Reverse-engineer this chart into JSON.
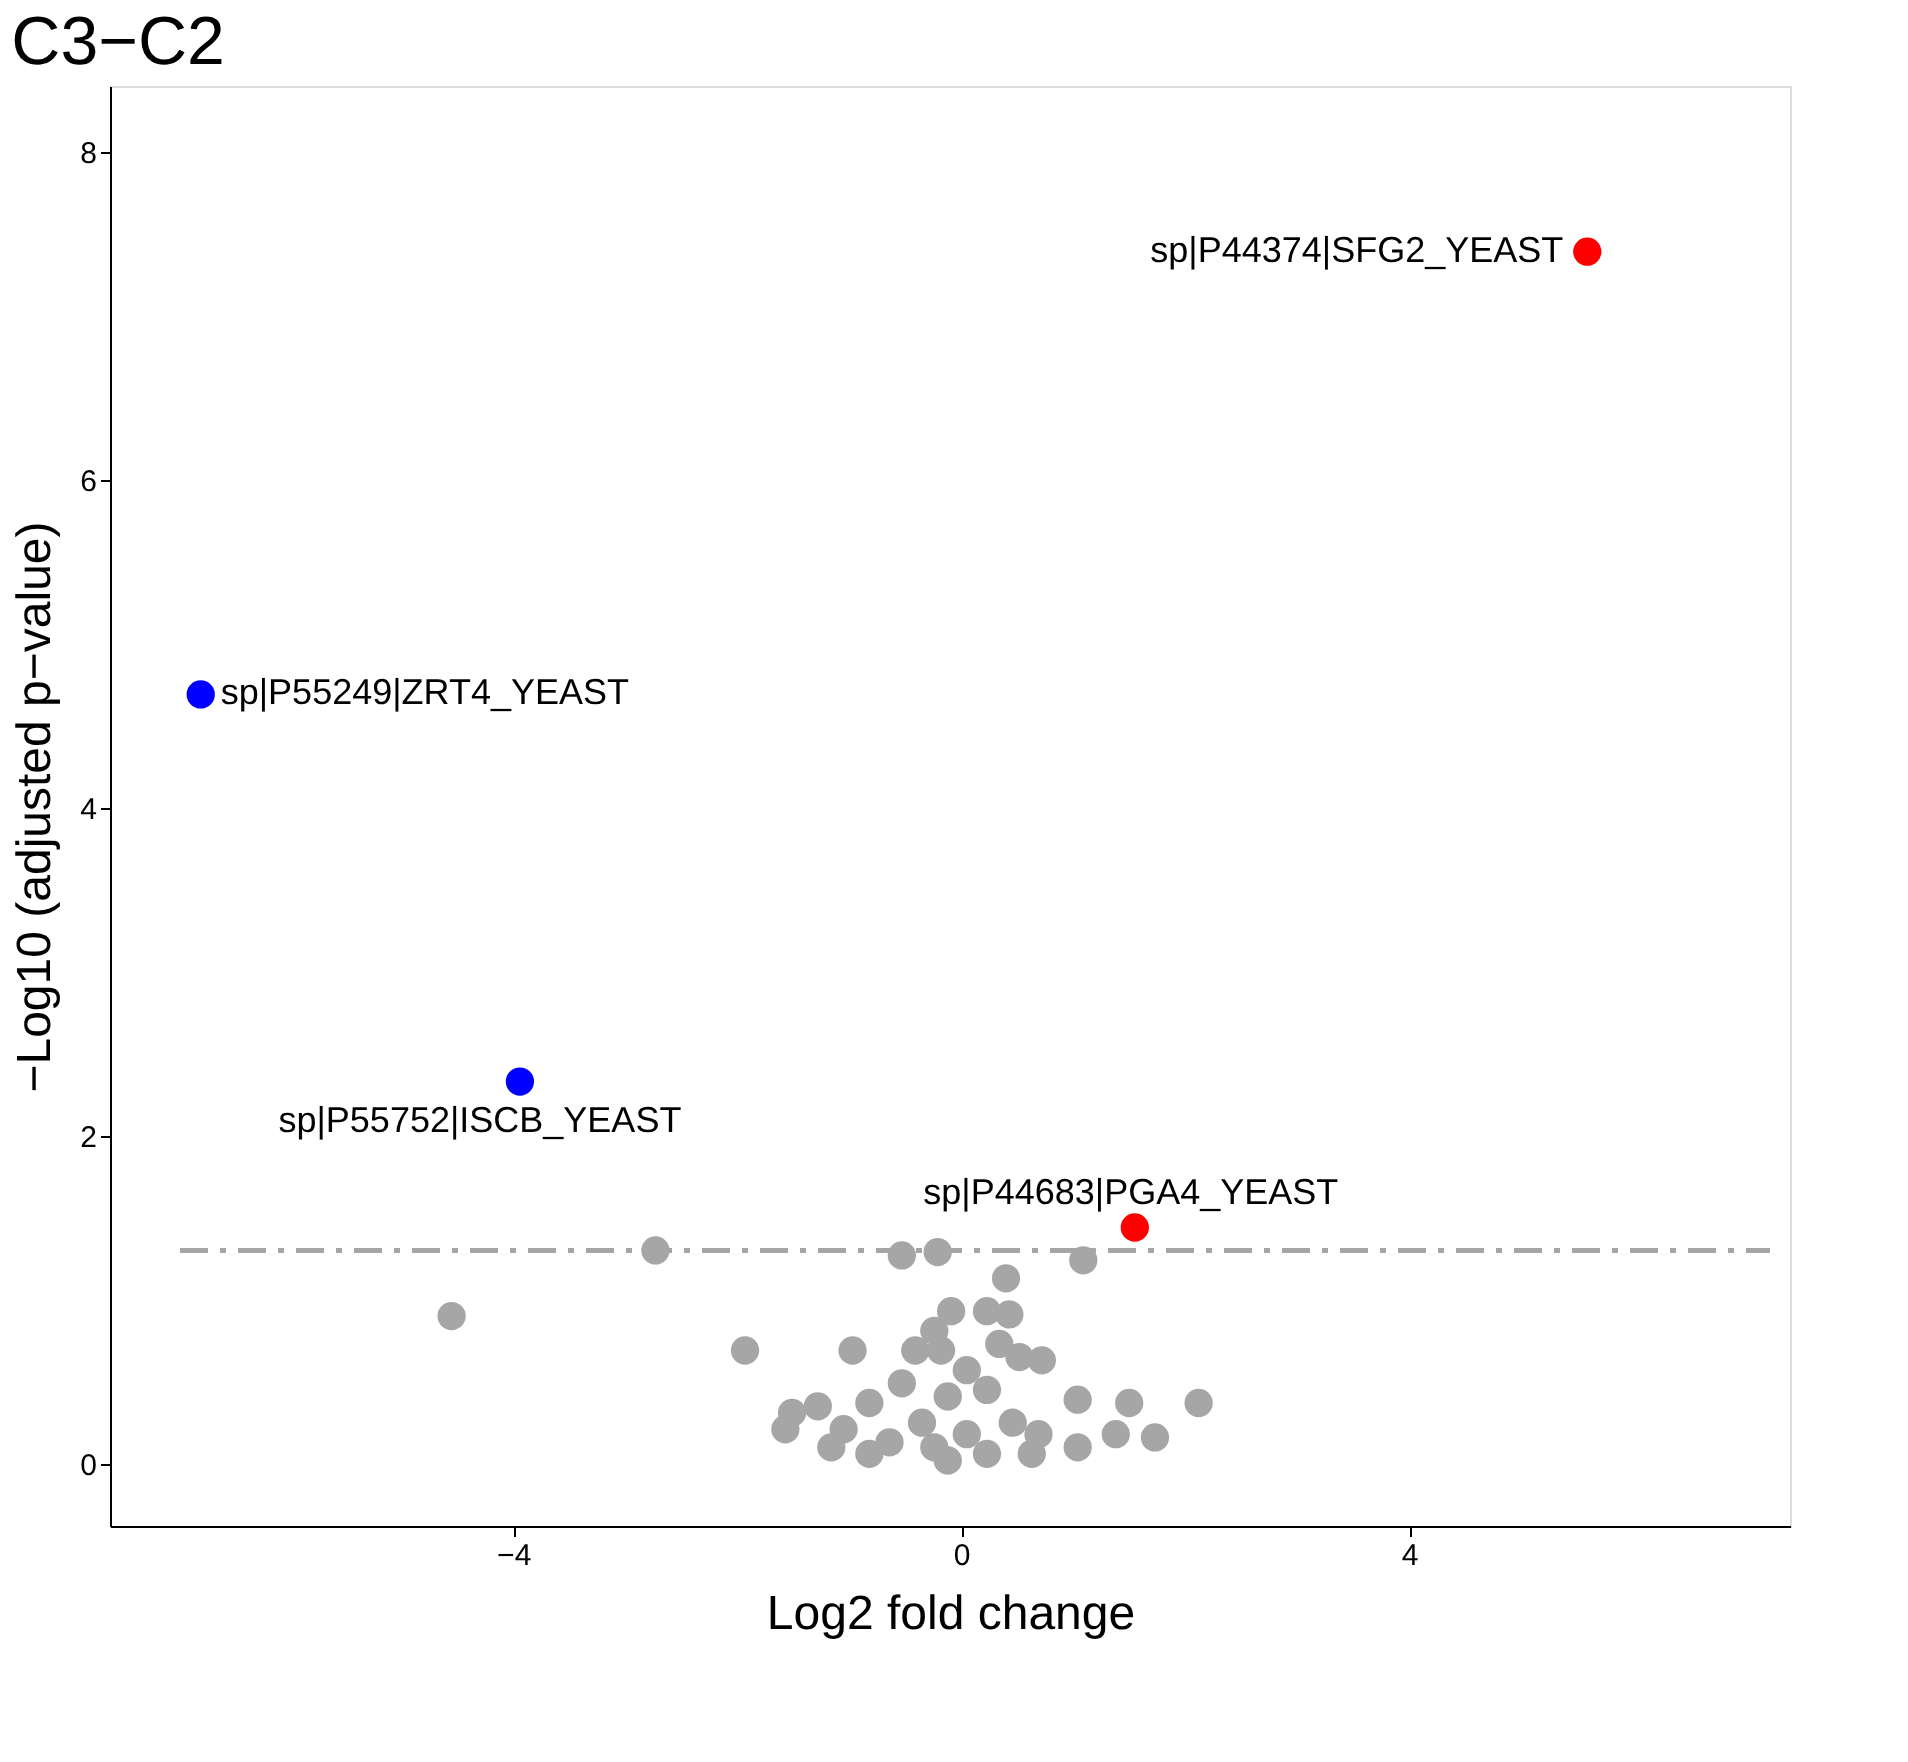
{
  "chart_data": {
    "type": "scatter",
    "title": "C3−C2",
    "xlabel": "Log2 fold change",
    "ylabel": "−Log10 (adjusted p−value)",
    "xlim": [
      -7.6,
      7.4
    ],
    "ylim": [
      -0.38,
      8.4
    ],
    "xticks": [
      {
        "value": -4,
        "label": "−4"
      },
      0,
      4
    ],
    "yticks": [
      0,
      2,
      4,
      6,
      8
    ],
    "grid": false,
    "marker": "circle",
    "series": [
      {
        "color": "#a6a6a6",
        "x": [
          -4.55,
          -2.73,
          -0.53,
          -0.21,
          1.09,
          0.4,
          -1.93,
          -0.97,
          2.12,
          -0.09,
          0.23,
          0.43,
          0.72,
          1.5,
          1.73,
          -1.51,
          -1.57,
          -1.28,
          -0.82,
          -0.41,
          -0.24,
          0.34,
          0.52,
          1.04,
          1.38,
          -0.12,
          -0.82,
          -1.16,
          0.63,
          1.04,
          -0.53,
          0.05,
          0.23,
          -0.35,
          0.05,
          0.46,
          0.69,
          -1.05,
          -0.64,
          -0.24,
          0.23,
          -0.18,
          -0.12
        ],
        "values": [
          0.9,
          1.3,
          1.27,
          1.29,
          1.24,
          1.13,
          0.69,
          0.69,
          0.37,
          0.93,
          0.93,
          0.91,
          0.63,
          0.37,
          0.16,
          0.31,
          0.21,
          0.35,
          0.37,
          0.69,
          0.81,
          0.73,
          0.65,
          0.39,
          0.18,
          0.02,
          0.06,
          0.1,
          0.06,
          0.1,
          0.49,
          0.57,
          0.45,
          0.25,
          0.18,
          0.25,
          0.18,
          0.21,
          0.13,
          0.1,
          0.06,
          0.69,
          0.41
        ]
      },
      {
        "color": "#ff0000",
        "x": [
          5.59,
          1.55
        ],
        "values": [
          7.39,
          1.44
        ]
      },
      {
        "color": "#0000ff",
        "x": [
          -6.79,
          -3.94
        ],
        "values": [
          4.69,
          2.33
        ]
      }
    ],
    "ref_lines": [
      {
        "axis": "y",
        "value": 1.3,
        "color": "#a6a6a6",
        "line_style": "dashed"
      }
    ],
    "annotations": [
      {
        "text": "sp|P44374|SFG2_YEAST",
        "x": 5.59,
        "y": 7.39
      },
      {
        "text": "sp|P55249|ZRT4_YEAST",
        "x": -6.79,
        "y": 4.69
      },
      {
        "text": "sp|P55752|ISCB_YEAST",
        "x": -3.94,
        "y": 2.33
      },
      {
        "text": "sp|P44683|PGA4_YEAST",
        "x": 1.55,
        "y": 1.44
      }
    ]
  }
}
